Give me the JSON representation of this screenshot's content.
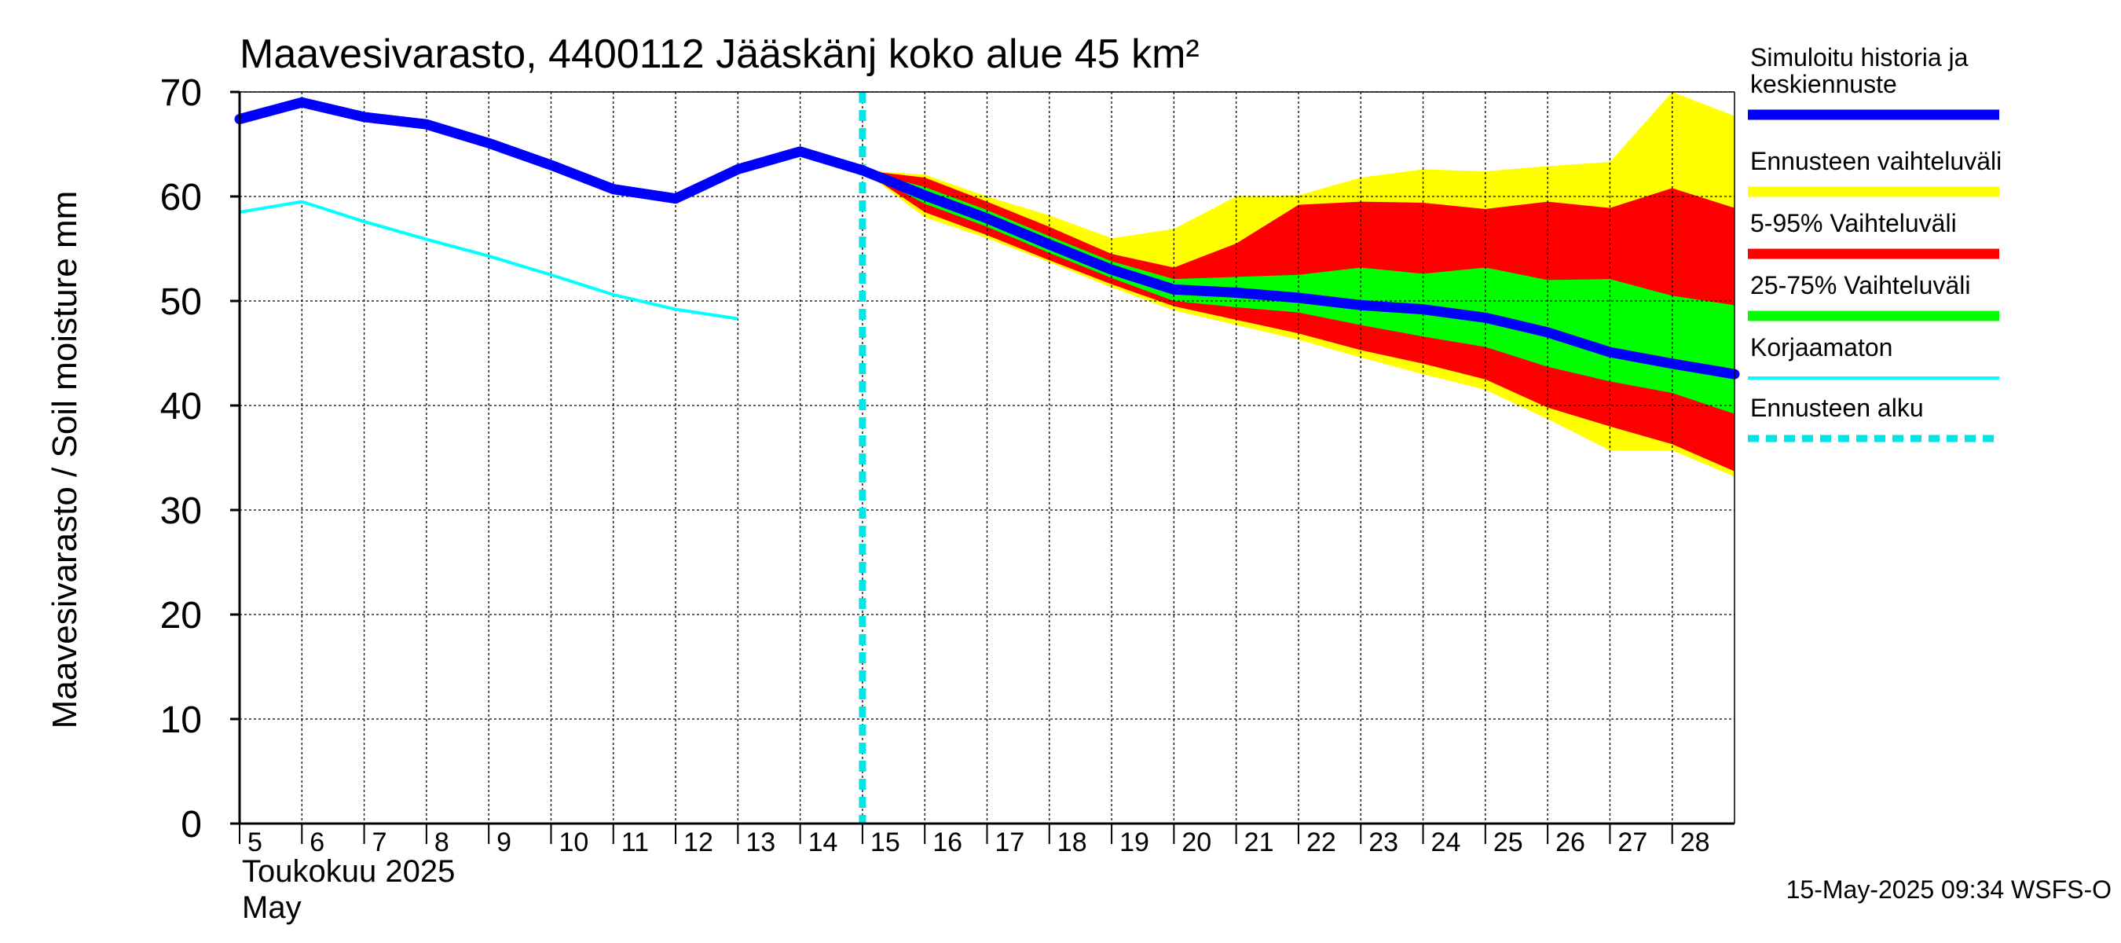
{
  "chart_data": {
    "type": "area",
    "title": "Maavesivarasto, 4400112 Jääskänj koko alue 45 km²",
    "ylabel": "Maavesivarasto / Soil moisture   mm",
    "ylim": [
      0,
      70
    ],
    "yticks": [
      0,
      10,
      20,
      30,
      40,
      50,
      60,
      70
    ],
    "xlim": [
      5,
      29
    ],
    "xticks": [
      5,
      6,
      7,
      8,
      9,
      10,
      11,
      12,
      13,
      14,
      15,
      16,
      17,
      18,
      19,
      20,
      21,
      22,
      23,
      24,
      25,
      26,
      27,
      28
    ],
    "xlabel_fi": "Toukokuu  2025",
    "xlabel_en": "May",
    "grid": true,
    "forecast_start": 15,
    "series": {
      "history": {
        "name": "Simuloitu historia ja keskiennuste",
        "color": "#0000ff",
        "x": [
          5,
          6,
          7,
          8,
          9,
          10,
          11,
          12,
          13,
          14,
          15,
          16,
          17,
          18,
          19,
          20,
          21,
          22,
          23,
          24,
          25,
          26,
          27,
          28,
          29
        ],
        "y": [
          67.4,
          69.0,
          67.6,
          66.9,
          65.1,
          63.0,
          60.7,
          59.8,
          62.6,
          64.3,
          62.5,
          60.1,
          57.9,
          55.4,
          53.0,
          51.1,
          50.8,
          50.3,
          49.6,
          49.2,
          48.4,
          47.0,
          45.1,
          44.0,
          43.0
        ]
      },
      "uncorrected": {
        "name": "Korjaamaton",
        "color": "#00ffff",
        "x": [
          5,
          6,
          7,
          8,
          9,
          10,
          11,
          12,
          13
        ],
        "y": [
          58.5,
          59.5,
          57.6,
          55.9,
          54.3,
          52.5,
          50.6,
          49.2,
          48.3
        ]
      },
      "range_full": {
        "name": "Ennusteen vaihteluväli",
        "color": "#ffff00",
        "x": [
          15,
          16,
          17,
          18,
          19,
          20,
          21,
          22,
          23,
          24,
          25,
          26,
          27,
          28,
          29
        ],
        "upper": [
          62.5,
          62.1,
          60.0,
          58.2,
          56.0,
          56.9,
          60.0,
          60.1,
          61.8,
          62.6,
          62.4,
          62.9,
          63.3,
          70.0,
          67.7
        ],
        "lower": [
          62.5,
          58.0,
          56.0,
          53.7,
          51.3,
          49.1,
          47.7,
          46.3,
          44.6,
          43.0,
          41.5,
          38.7,
          35.7,
          35.7,
          33.2
        ]
      },
      "range_5_95": {
        "name": "5-95% Vaihteluväli",
        "color": "#ff0000",
        "x": [
          15,
          16,
          17,
          18,
          19,
          20,
          21,
          22,
          23,
          24,
          25,
          26,
          27,
          28,
          29
        ],
        "upper": [
          62.5,
          61.8,
          59.5,
          57.1,
          54.5,
          53.2,
          55.5,
          59.2,
          59.5,
          59.4,
          58.8,
          59.5,
          58.9,
          60.8,
          58.9
        ],
        "lower": [
          62.5,
          58.5,
          56.3,
          53.9,
          51.6,
          49.5,
          48.2,
          46.9,
          45.3,
          44.0,
          42.5,
          39.8,
          38.0,
          36.3,
          33.7
        ]
      },
      "range_25_75": {
        "name": "25-75% Vaihteluväli",
        "color": "#00ff00",
        "x": [
          15,
          16,
          17,
          18,
          19,
          20,
          21,
          22,
          23,
          24,
          25,
          26,
          27,
          28,
          29
        ],
        "upper": [
          62.5,
          60.9,
          58.7,
          56.2,
          53.8,
          52.1,
          52.3,
          52.5,
          53.2,
          52.6,
          53.2,
          52.0,
          52.1,
          50.5,
          49.6
        ],
        "lower": [
          62.5,
          59.3,
          57.1,
          54.6,
          52.2,
          50.0,
          49.4,
          48.9,
          47.7,
          46.6,
          45.6,
          43.7,
          42.3,
          41.2,
          39.2
        ]
      }
    },
    "legend": [
      {
        "label_1": "Simuloitu historia ja",
        "label_2": "keskiennuste",
        "color": "#0000ff",
        "style": "thick"
      },
      {
        "label_1": "Ennusteen vaihteluväli",
        "color": "#ffff00",
        "style": "band"
      },
      {
        "label_1": "5-95% Vaihteluväli",
        "color": "#ff0000",
        "style": "band"
      },
      {
        "label_1": "25-75% Vaihteluväli",
        "color": "#00ff00",
        "style": "band"
      },
      {
        "label_1": "Korjaamaton",
        "color": "#00ffff",
        "style": "thin"
      },
      {
        "label_1": "Ennusteen alku",
        "color": "#00e5e5",
        "style": "dashed"
      }
    ],
    "timestamp": "15-May-2025 09:34 WSFS-O"
  }
}
